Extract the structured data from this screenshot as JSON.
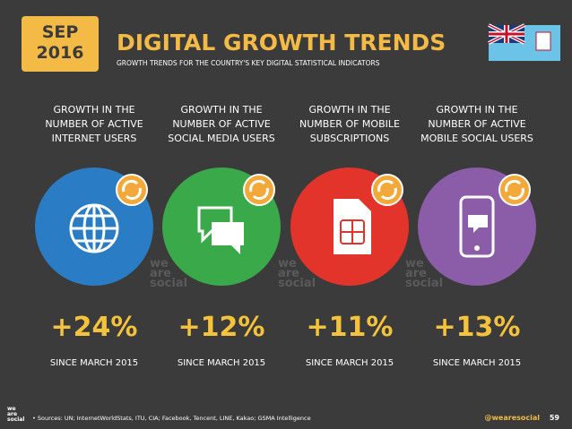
{
  "header": {
    "date": [
      "SEP",
      "2016"
    ],
    "title": "DIGITAL GROWTH TRENDS",
    "subtitle": "GROWTH TRENDS FOR THE COUNTRY'S KEY DIGITAL STATISTICAL INDICATORS"
  },
  "panels": [
    {
      "label": [
        "GROWTH IN THE",
        "NUMBER OF ACTIVE",
        "INTERNET USERS"
      ],
      "value": "+24%",
      "since": "SINCE MARCH 2015"
    },
    {
      "label": [
        "GROWTH IN THE",
        "NUMBER OF ACTIVE",
        "SOCIAL MEDIA USERS"
      ],
      "value": "+12%",
      "since": "SINCE MARCH 2015"
    },
    {
      "label": [
        "GROWTH IN THE",
        "NUMBER OF MOBILE",
        "SUBSCRIPTIONS"
      ],
      "value": "+11%",
      "since": "SINCE MARCH 2015"
    },
    {
      "label": [
        "GROWTH IN THE",
        "NUMBER OF ACTIVE",
        "MOBILE SOCIAL USERS"
      ],
      "value": "+13%",
      "since": "SINCE MARCH 2015"
    }
  ],
  "watermark": [
    "we",
    "are",
    "social"
  ],
  "footer": {
    "logo": [
      "we",
      "are",
      "social"
    ],
    "sources": "• Sources: UN; InternetWorldStats, ITU, CIA; Facebook, Tencent, LINE, Kakao; GSMA Intelligence",
    "handle": "@wearesocial",
    "page": "59"
  }
}
